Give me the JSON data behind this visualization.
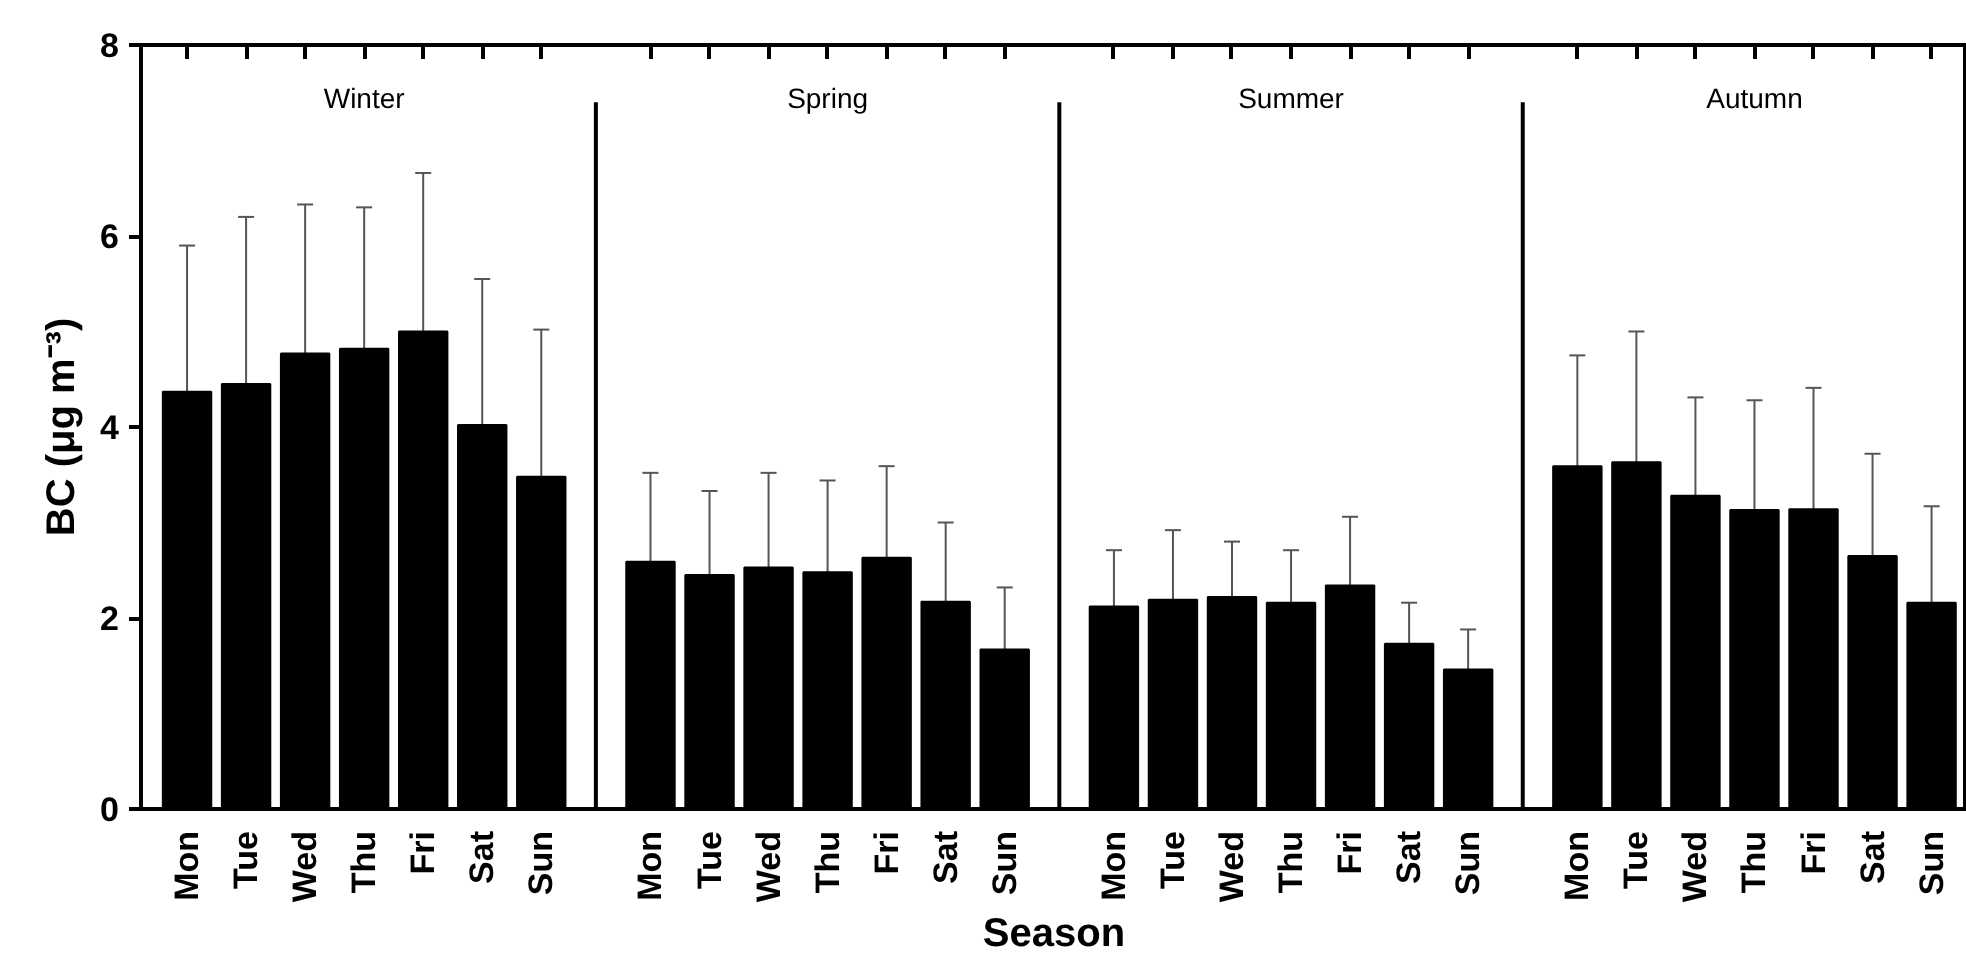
{
  "chart_data": {
    "type": "bar",
    "xlabel": "Season",
    "ylabel": "BC (μg m⁻³)",
    "categories": [
      "Mon",
      "Tue",
      "Wed",
      "Thu",
      "Fri",
      "Sat",
      "Sun",
      "Mon",
      "Tue",
      "Wed",
      "Thu",
      "Fri",
      "Sat",
      "Sun",
      "Mon",
      "Tue",
      "Wed",
      "Thu",
      "Fri",
      "Sat",
      "Sun",
      "Mon",
      "Tue",
      "Wed",
      "Thu",
      "Fri",
      "Sat",
      "Sun"
    ],
    "annotations": [
      "Winter",
      "Spring",
      "Summer",
      "Autumn"
    ],
    "series": [
      {
        "color": "#000000",
        "values": [
          4.37,
          4.45,
          4.77,
          4.82,
          5.0,
          4.02,
          3.48,
          2.59,
          2.45,
          2.53,
          2.48,
          2.63,
          2.17,
          1.67,
          2.12,
          2.19,
          2.22,
          2.16,
          2.34,
          1.73,
          1.46,
          3.59,
          3.63,
          3.28,
          3.13,
          3.14,
          2.65,
          2.16
        ],
        "errors": [
          [
            4.37,
            5.9
          ],
          [
            4.45,
            6.2
          ],
          [
            4.77,
            6.33
          ],
          [
            4.82,
            6.3
          ],
          [
            5.0,
            6.66
          ],
          [
            4.02,
            5.55
          ],
          [
            3.48,
            5.02
          ],
          [
            2.59,
            3.52
          ],
          [
            2.45,
            3.33
          ],
          [
            2.53,
            3.52
          ],
          [
            2.48,
            3.44
          ],
          [
            2.63,
            3.59
          ],
          [
            2.17,
            3.0
          ],
          [
            1.67,
            2.32
          ],
          [
            2.12,
            2.71
          ],
          [
            2.19,
            2.92
          ],
          [
            2.22,
            2.8
          ],
          [
            2.16,
            2.71
          ],
          [
            2.34,
            3.06
          ],
          [
            1.73,
            2.16
          ],
          [
            1.46,
            1.88
          ],
          [
            3.59,
            4.75
          ],
          [
            3.63,
            5.0
          ],
          [
            3.28,
            4.31
          ],
          [
            3.13,
            4.28
          ],
          [
            3.14,
            4.41
          ],
          [
            2.65,
            3.72
          ],
          [
            2.16,
            3.17
          ]
        ]
      }
    ],
    "ylim": [
      0,
      8
    ],
    "yticks": [
      0,
      2,
      4,
      6,
      8
    ],
    "grid": false
  }
}
